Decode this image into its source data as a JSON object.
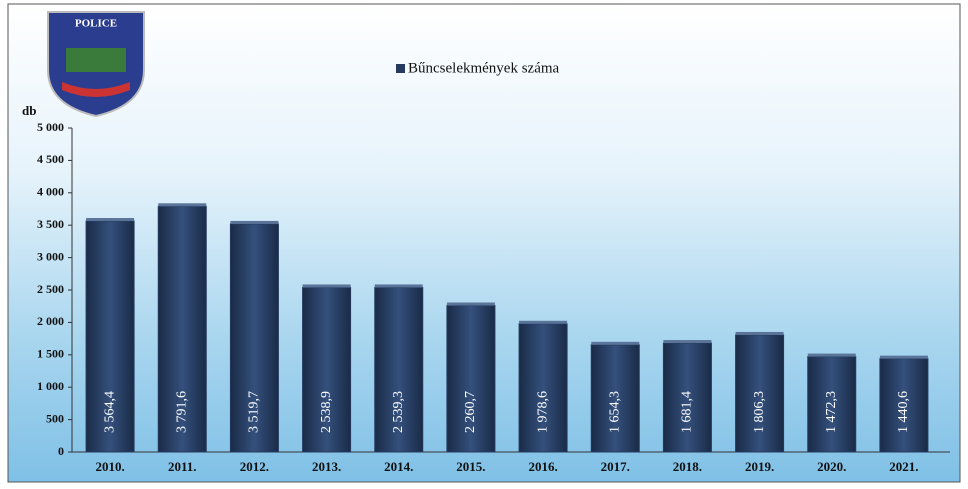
{
  "logo": {
    "text": "POLICE"
  },
  "chart_data": {
    "type": "bar",
    "y_label": "db",
    "categories": [
      "2010.",
      "2011.",
      "2012.",
      "2013.",
      "2014.",
      "2015.",
      "2016.",
      "2017.",
      "2018.",
      "2019.",
      "2020.",
      "2021."
    ],
    "series": [
      {
        "name": "Bűncselekmények száma",
        "color": "#243a5e",
        "values": [
          3564.4,
          3791.6,
          3519.7,
          2538.9,
          2539.3,
          2260.7,
          1978.6,
          1654.3,
          1681.4,
          1806.3,
          1472.3,
          1440.6
        ],
        "value_labels": [
          "3 564,4",
          "3 791,6",
          "3 519,7",
          "2 538,9",
          "2 539,3",
          "2 260,7",
          "1 978,6",
          "1 654,3",
          "1 681,4",
          "1 806,3",
          "1 472,3",
          "1 440,6"
        ]
      }
    ],
    "ylim": [
      0,
      5000
    ],
    "yticks": [
      0,
      500,
      {
        "value": 1000,
        "label": "1 000"
      },
      {
        "value": 1500,
        "label": "1 500"
      },
      {
        "value": 2000,
        "label": "2 000"
      },
      {
        "value": 2500,
        "label": "2 500"
      },
      {
        "value": 3000,
        "label": "3 000"
      },
      {
        "value": 3500,
        "label": "3 500"
      },
      {
        "value": 4000,
        "label": "4 000"
      },
      {
        "value": 4500,
        "label": "4 500"
      },
      {
        "value": 5000,
        "label": "5 000"
      }
    ],
    "grid": false,
    "legend": "top"
  }
}
